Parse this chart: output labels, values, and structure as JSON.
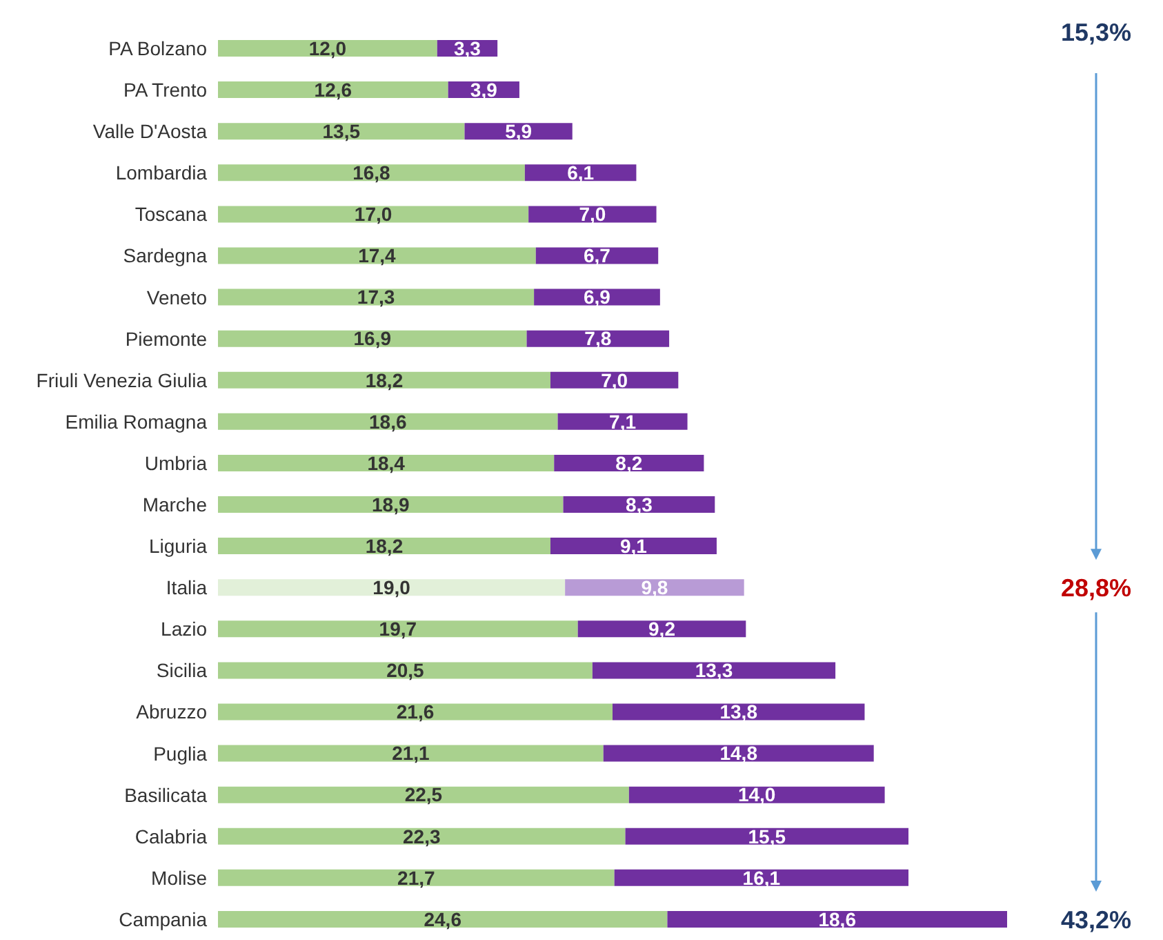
{
  "chart_data": {
    "type": "bar",
    "orientation": "horizontal",
    "stacked": true,
    "data_labels": true,
    "categories": [
      "PA Bolzano",
      "PA Trento",
      "Valle D'Aosta",
      "Lombardia",
      "Toscana",
      "Sardegna",
      "Veneto",
      "Piemonte",
      "Friuli Venezia Giulia",
      "Emilia Romagna",
      "Umbria",
      "Marche",
      "Liguria",
      "Italia",
      "Lazio",
      "Sicilia",
      "Abruzzo",
      "Puglia",
      "Basilicata",
      "Calabria",
      "Molise",
      "Campania"
    ],
    "series": [
      {
        "colors": [
          "#a9d18e",
          "#a9d18e",
          "#a9d18e",
          "#a9d18e",
          "#a9d18e",
          "#a9d18e",
          "#a9d18e",
          "#a9d18e",
          "#a9d18e",
          "#a9d18e",
          "#a9d18e",
          "#a9d18e",
          "#a9d18e",
          "#e2f0d9",
          "#a9d18e",
          "#a9d18e",
          "#a9d18e",
          "#a9d18e",
          "#a9d18e",
          "#a9d18e",
          "#a9d18e",
          "#a9d18e"
        ],
        "values": [
          12.0,
          12.6,
          13.5,
          16.8,
          17.0,
          17.4,
          17.3,
          16.9,
          18.2,
          18.6,
          18.4,
          18.9,
          18.2,
          19.0,
          19.7,
          20.5,
          21.6,
          21.1,
          22.5,
          22.3,
          21.7,
          24.6
        ],
        "value_labels": [
          "12,0",
          "12,6",
          "13,5",
          "16,8",
          "17,0",
          "17,4",
          "17,3",
          "16,9",
          "18,2",
          "18,6",
          "18,4",
          "18,9",
          "18,2",
          "19,0",
          "19,7",
          "20,5",
          "21,6",
          "21,1",
          "22,5",
          "22,3",
          "21,7",
          "24,6"
        ]
      },
      {
        "colors": [
          "#7030a0",
          "#7030a0",
          "#7030a0",
          "#7030a0",
          "#7030a0",
          "#7030a0",
          "#7030a0",
          "#7030a0",
          "#7030a0",
          "#7030a0",
          "#7030a0",
          "#7030a0",
          "#7030a0",
          "#b89bd6",
          "#7030a0",
          "#7030a0",
          "#7030a0",
          "#7030a0",
          "#7030a0",
          "#7030a0",
          "#7030a0",
          "#7030a0"
        ],
        "values": [
          3.3,
          3.9,
          5.9,
          6.1,
          7.0,
          6.7,
          6.9,
          7.8,
          7.0,
          7.1,
          8.2,
          8.3,
          9.1,
          9.8,
          9.2,
          13.3,
          13.8,
          14.8,
          14.0,
          15.5,
          16.1,
          18.6
        ],
        "value_labels": [
          "3,3",
          "3,9",
          "5,9",
          "6,1",
          "7,0",
          "6,7",
          "6,9",
          "7,8",
          "7,0",
          "7,1",
          "8,2",
          "8,3",
          "9,1",
          "9,8",
          "9,2",
          "13,3",
          "13,8",
          "14,8",
          "14,0",
          "15,5",
          "16,1",
          "18,6"
        ]
      }
    ],
    "annotations": [
      "15,3%",
      "28,8%",
      "43,2%"
    ]
  }
}
